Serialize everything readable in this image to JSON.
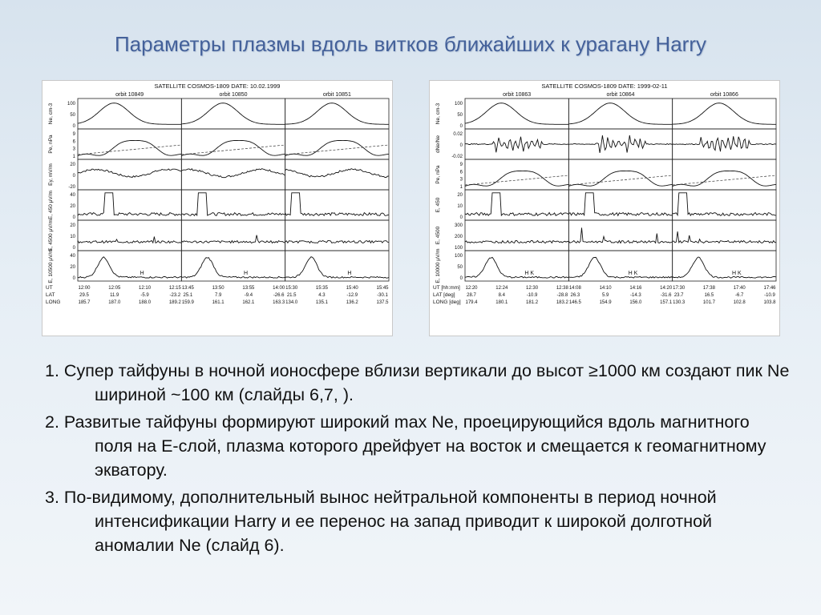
{
  "slide": {
    "title": "Параметры плазмы вдоль витков ближайших к урагану Harry",
    "bullets": [
      {
        "num": "1.",
        "text": "Супер тайфуны в ночной ионосфере вблизи вертикали до высот ≥1000 км создают пик Ne шириной ~100 км (слайды 6,7, )."
      },
      {
        "num": "2.",
        "text": "Развитые тайфуны формируют широкий max Ne, проецирующийся вдоль магнитного поля на  E-слой, плазма которого дрейфует на восток и смещается к геомагнитному экватору."
      },
      {
        "num": "3.",
        "text": "По-видимому, дополнительный вынос нейтральной компоненты в период ночной интенсификации Harry и ее перенос на запад приводит к широкой долготной аномалии Ne (слайд 6)."
      }
    ]
  },
  "figures": [
    {
      "id": "left",
      "header": "SATELLITE  COSMOS-1809  DATE: 10.02.1999",
      "orbits": [
        "orbit  10849",
        "orbit  10850",
        "orbit  10851"
      ],
      "panels": [
        {
          "label": "Ne, cm-3",
          "ticks": [
            "100",
            "50",
            "0"
          ]
        },
        {
          "label": "Pe, nPa",
          "ticks": [
            "9",
            "6",
            "3",
            "1"
          ]
        },
        {
          "label": "Ey, mV/m",
          "ticks": [
            "20",
            "0",
            "-20"
          ]
        },
        {
          "label": "E, 450 μV/m",
          "ticks": [
            "40",
            "20",
            "0"
          ]
        },
        {
          "label": "E, 4500 μV/m",
          "ticks": [
            "20",
            "10",
            "0"
          ]
        },
        {
          "label": "E, 10500 μV/m",
          "ticks": [
            "40",
            "20",
            "0"
          ]
        }
      ],
      "rowlabels": [
        "UT",
        "LAT",
        "LONG"
      ],
      "columns": [
        [
          [
            "12:00",
            "12:05",
            "12:10",
            "12:15"
          ],
          [
            "29.5",
            "11.9",
            "-5.9",
            "-23.2"
          ],
          [
            "185.7",
            "187.0",
            "188.0",
            "189.2"
          ]
        ],
        [
          [
            "13:45",
            "13:50",
            "13:55",
            "14:00"
          ],
          [
            "25.1",
            "7.9",
            "-9.4",
            "-26.6"
          ],
          [
            "159.9",
            "161.1",
            "162.1",
            "163.3"
          ]
        ],
        [
          [
            "15:30",
            "15:35",
            "15:40",
            "15:45"
          ],
          [
            "21.5",
            "4.3",
            "-12.9",
            "-30.1"
          ],
          [
            "134.0",
            "135.1",
            "136.2",
            "137.5"
          ]
        ]
      ],
      "marker": "H"
    },
    {
      "id": "right",
      "header": "SATELLITE  COSMOS-1809  DATE: 1999-02-11",
      "orbits": [
        "orbit  10863",
        "orbit  10864",
        "orbit  10866"
      ],
      "panels": [
        {
          "label": "Ne, cm-3",
          "ticks": [
            "100",
            "50",
            "0"
          ]
        },
        {
          "label": "dNe/Ne",
          "ticks": [
            "0.02",
            "0",
            "-0.02"
          ]
        },
        {
          "label": "Pe, nPa",
          "ticks": [
            "9",
            "6",
            "3",
            "1"
          ]
        },
        {
          "label": "E, 450",
          "ticks": [
            "20",
            "10",
            "0"
          ]
        },
        {
          "label": "E, 4500",
          "ticks": [
            "300",
            "200",
            "100"
          ]
        },
        {
          "label": "E, 10000 μV/m",
          "ticks": [
            "100",
            "50",
            "0"
          ]
        }
      ],
      "rowlabels": [
        "UT [hh:mm]",
        "LAT [deg]",
        "LONG [deg]"
      ],
      "columns": [
        [
          [
            "12:20",
            "12:24",
            "12:30",
            "12:38"
          ],
          [
            "28.7",
            "8.4",
            "-10.9",
            "-28.8"
          ],
          [
            "179.4",
            "180.1",
            "181.2",
            "183.2"
          ]
        ],
        [
          [
            "14:08",
            "14:10",
            "14:16",
            "14:20"
          ],
          [
            "26.3",
            "5.9",
            "-14.3",
            "-31.6"
          ],
          [
            "146.5",
            "154.9",
            "156.0",
            "157.1"
          ]
        ],
        [
          [
            "17:30",
            "17:38",
            "17:40",
            "17:46"
          ],
          [
            "23.7",
            "16.5",
            "-6.7",
            "-10.9"
          ],
          [
            "130.3",
            "101.7",
            "102.8",
            "103.8"
          ]
        ]
      ],
      "marker": "H K"
    }
  ]
}
